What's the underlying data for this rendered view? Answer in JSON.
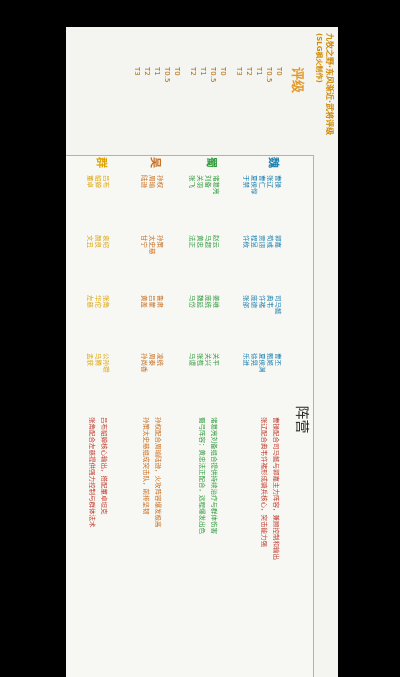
{
  "doc": {
    "title": "九牧之野·东风渐近·武将评级",
    "subtitle": "(SLG枫火制作)",
    "tier_heading": "评级",
    "lineup_heading": "阵营"
  },
  "tiers": [
    {
      "labels": [
        "T0",
        "T0.5",
        "T1",
        "T2",
        "T3"
      ]
    },
    {
      "labels": [
        "T0",
        "T0.5",
        "T1",
        "T2"
      ]
    },
    {
      "labels": [
        "T0",
        "T0.5",
        "T1",
        "T2",
        "T3"
      ]
    }
  ],
  "factions": {
    "wei": {
      "name": "魏",
      "color": "#1d7fb0"
    },
    "shu": {
      "name": "蜀",
      "color": "#2f9b3b"
    },
    "wu": {
      "name": "吴",
      "color": "#c86a1b"
    },
    "qun": {
      "name": "群",
      "color": "#e0a400"
    }
  },
  "wei": {
    "col1": [
      "曹操",
      "张辽",
      "曹仁",
      "夏侯惇",
      "于禁"
    ],
    "col2": [
      "郭嘉",
      "荀彧",
      "贾诩",
      "程昱",
      "许攸"
    ],
    "col3": [
      "司马懿",
      "典韦",
      "许褚",
      "庞德",
      "张郃"
    ],
    "col4": [
      "曹丕",
      "甄姬",
      "夏侯渊",
      "徐晃",
      "乐进"
    ],
    "notes": [
      "曹操配合司马懿与郭嘉主力阵容，兼顾控制和输出",
      "张辽配合典韦许褚形成骑兵核心，突击能力强"
    ]
  },
  "shu": {
    "col1": [
      "诸葛亮",
      "刘备",
      "关羽",
      "张飞"
    ],
    "col2": [
      "赵云",
      "马超",
      "黄忠",
      "法正"
    ],
    "col3": [
      "姜维",
      "庞统",
      "魏延",
      "马岱"
    ],
    "col4": [
      "关平",
      "关兴",
      "张苞",
      "马谡"
    ],
    "notes": [
      "诸葛亮刘备组合提供持续治疗与群体伤害",
      "蜀弓阵容：黄忠法正配合，远程爆发出色"
    ]
  },
  "wu": {
    "col1": [
      "孙权",
      "周瑜",
      "陆逊"
    ],
    "col2": [
      "孙策",
      "太史慈",
      "甘宁"
    ],
    "col3": [
      "鲁肃",
      "吕蒙",
      "黄盖"
    ],
    "col4": [
      "凌统",
      "周泰",
      "孙尚香"
    ],
    "notes": [
      "孙权配合周瑜陆逊，火攻阵容爆发极高",
      "孙策太史慈组成突击队，前排坚韧"
    ]
  },
  "qun": {
    "col1": [
      "吕布",
      "貂蝉",
      "董卓"
    ],
    "col2": [
      "袁绍",
      "颜良",
      "文丑"
    ],
    "col3": [
      "张角",
      "华佗",
      "左慈"
    ],
    "col4": [
      "公孙瓒",
      "马腾",
      "孟获"
    ],
    "notes": [
      "吕布貂蝉核心输出，搭配董卓坦克",
      "张角配合左慈提供强力控制与群体法术"
    ]
  }
}
